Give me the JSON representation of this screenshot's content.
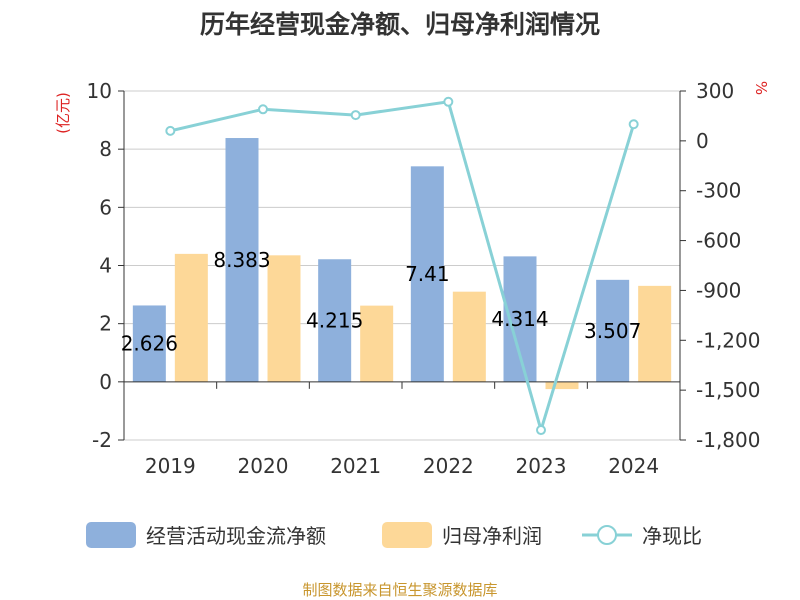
{
  "chart_data": {
    "type": "bar",
    "title": "历年经营现金净额、归母净利润情况",
    "categories": [
      "2019",
      "2020",
      "2021",
      "2022",
      "2023",
      "2024"
    ],
    "series": [
      {
        "name": "经营活动现金流净额",
        "axis": "left",
        "kind": "bar",
        "color": "#8eb0dc",
        "values": [
          2.626,
          8.383,
          4.215,
          7.41,
          4.314,
          3.507
        ],
        "labels": [
          "2.626",
          "8.383",
          "4.215",
          "7.41",
          "4.314",
          "3.507"
        ]
      },
      {
        "name": "归母净利润",
        "axis": "left",
        "kind": "bar",
        "color": "#fdd898",
        "values": [
          4.4,
          4.35,
          2.62,
          3.1,
          -0.25,
          3.3
        ]
      },
      {
        "name": "净现比",
        "axis": "right",
        "kind": "line",
        "color": "#88d1d6",
        "values": [
          60,
          190,
          155,
          235,
          -1740,
          100
        ]
      }
    ],
    "y_left": {
      "unit": "(亿元)",
      "min": -2,
      "max": 10,
      "ticks": [
        -2,
        0,
        2,
        4,
        6,
        8,
        10
      ],
      "tick_labels": [
        "-2",
        "0",
        "2",
        "4",
        "6",
        "8",
        "10"
      ]
    },
    "y_right": {
      "unit": "%",
      "min": -1800,
      "max": 300,
      "ticks": [
        -1800,
        -1500,
        -1200,
        -900,
        -600,
        -300,
        0,
        300
      ],
      "tick_labels": [
        "-1,800",
        "-1,500",
        "-1,200",
        "-900",
        "-600",
        "-300",
        "0",
        "300"
      ]
    },
    "grid": true,
    "legend_position": "bottom"
  },
  "source": "制图数据来自恒生聚源数据库"
}
